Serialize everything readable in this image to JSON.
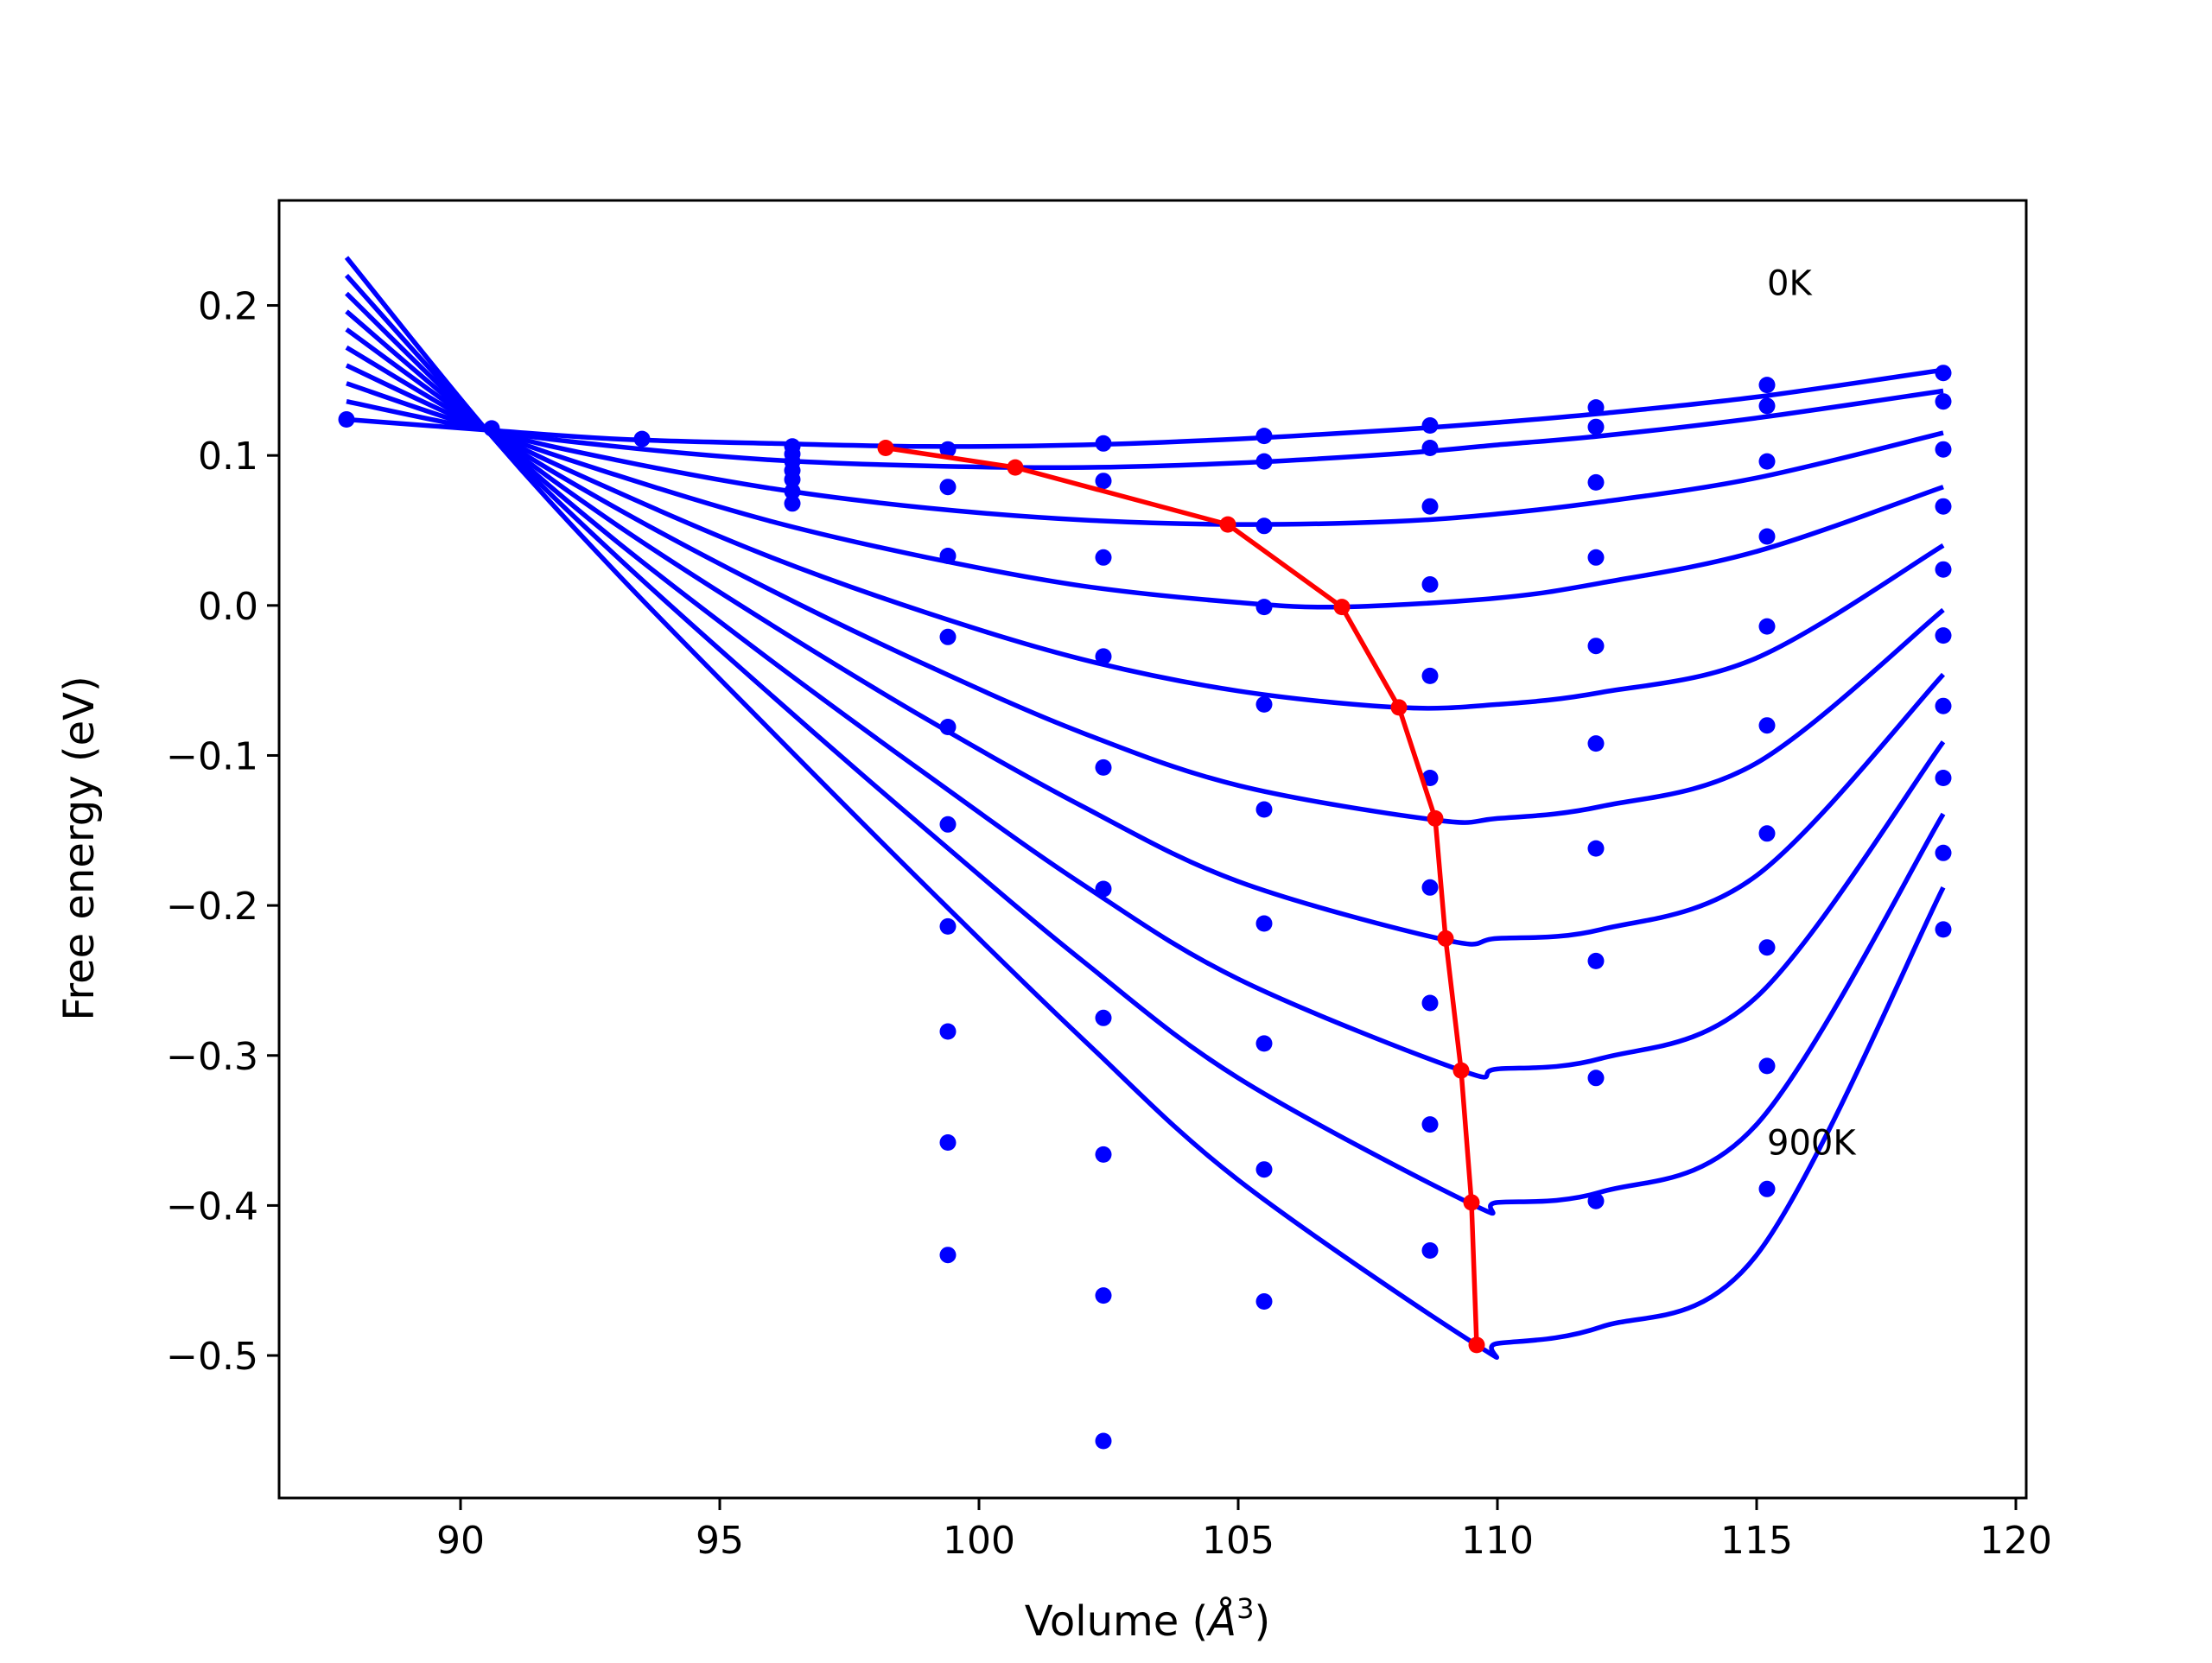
{
  "chart_data": {
    "type": "line",
    "title": "",
    "xlabel": "Volume (",
    "xlabel_symbol": "Å",
    "xlabel_sup": "3",
    "xlabel_close": ")",
    "ylabel": "Free energy (eV)",
    "xlim": [
      86.5,
      120.2
    ],
    "ylim": [
      -0.595,
      0.27
    ],
    "xticks": [
      90,
      95,
      100,
      105,
      110,
      115,
      120
    ],
    "xtick_labels": [
      "90",
      "95",
      "100",
      "105",
      "110",
      "115",
      "120"
    ],
    "yticks": [
      0.2,
      0.1,
      0.0,
      -0.1,
      -0.2,
      -0.3,
      -0.4,
      -0.5
    ],
    "ytick_labels": [
      "0.2",
      "0.1",
      "0.0",
      "−0.1",
      "−0.2",
      "−0.3",
      "−0.4",
      "−0.5"
    ],
    "grid": false,
    "colors": {
      "fits": "#0000ff",
      "points": "#0000ff",
      "minima": "#ff0000",
      "axes": "#000000"
    },
    "annotations": [
      {
        "text": "0K",
        "x": 115.2,
        "y": 0.207
      },
      {
        "text": "900K",
        "x": 115.2,
        "y": -0.366
      }
    ],
    "fit_curves": [
      {
        "x": [
          87.8,
          90.5,
          93.0,
          96.0,
          99.0,
          102.0,
          105.0,
          108.0,
          110.0,
          112.0,
          115.0,
          118.6
        ],
        "y": [
          0.124,
          0.117,
          0.111,
          0.108,
          0.106,
          0.107,
          0.111,
          0.117,
          0.122,
          0.128,
          0.139,
          0.157
        ]
      },
      {
        "x": [
          87.8,
          90.5,
          93.0,
          96.0,
          99.0,
          102.0,
          105.0,
          108.0,
          110.0,
          112.0,
          115.0,
          118.6
        ],
        "y": [
          0.136,
          0.117,
          0.106,
          0.097,
          0.093,
          0.092,
          0.095,
          0.101,
          0.107,
          0.113,
          0.125,
          0.143
        ]
      },
      {
        "x": [
          87.8,
          90.5,
          93.0,
          96.0,
          99.0,
          102.0,
          105.0,
          108.0,
          110.0,
          112.0,
          115.0,
          118.6
        ],
        "y": [
          0.148,
          0.117,
          0.097,
          0.078,
          0.065,
          0.057,
          0.054,
          0.056,
          0.061,
          0.069,
          0.085,
          0.115
        ]
      },
      {
        "x": [
          87.8,
          90.5,
          93.0,
          96.0,
          99.0,
          102.0,
          105.0,
          107.0,
          110.0,
          112.0,
          115.0,
          118.6
        ],
        "y": [
          0.16,
          0.117,
          0.087,
          0.056,
          0.032,
          0.013,
          0.002,
          -0.001,
          0.005,
          0.015,
          0.036,
          0.079
        ]
      },
      {
        "x": [
          87.8,
          90.5,
          93.0,
          96.0,
          99.0,
          102.0,
          105.0,
          108.1,
          110.0,
          112.0,
          115.0,
          118.6
        ],
        "y": [
          0.172,
          0.117,
          0.076,
          0.032,
          -0.005,
          -0.036,
          -0.057,
          -0.068,
          -0.066,
          -0.058,
          -0.035,
          0.04
        ]
      },
      {
        "x": [
          87.8,
          90.5,
          93.0,
          96.0,
          99.0,
          102.0,
          105.0,
          108.8,
          110.0,
          112.0,
          115.0,
          118.6
        ],
        "y": [
          0.184,
          0.117,
          0.065,
          0.01,
          -0.04,
          -0.085,
          -0.12,
          -0.143,
          -0.142,
          -0.134,
          -0.105,
          -0.003
        ]
      },
      {
        "x": [
          87.8,
          90.5,
          93.0,
          96.0,
          99.0,
          102.0,
          105.0,
          109.0,
          110.0,
          112.0,
          115.0,
          118.6
        ],
        "y": [
          0.196,
          0.117,
          0.054,
          -0.013,
          -0.076,
          -0.134,
          -0.184,
          -0.223,
          -0.222,
          -0.216,
          -0.18,
          -0.046
        ]
      },
      {
        "x": [
          87.8,
          90.5,
          93.0,
          96.0,
          99.0,
          102.0,
          105.0,
          109.3,
          110.0,
          112.0,
          115.0,
          118.6
        ],
        "y": [
          0.208,
          0.117,
          0.043,
          -0.037,
          -0.113,
          -0.186,
          -0.249,
          -0.31,
          -0.309,
          -0.302,
          -0.261,
          -0.091
        ]
      },
      {
        "x": [
          87.8,
          90.5,
          93.0,
          96.0,
          99.0,
          102.0,
          105.0,
          109.5,
          110.0,
          112.0,
          115.0,
          118.6
        ],
        "y": [
          0.22,
          0.117,
          0.033,
          -0.06,
          -0.15,
          -0.237,
          -0.315,
          -0.399,
          -0.398,
          -0.391,
          -0.346,
          -0.139
        ]
      },
      {
        "x": [
          87.8,
          90.5,
          93.0,
          96.0,
          99.0,
          102.0,
          105.0,
          109.6,
          110.0,
          112.0,
          115.0,
          118.6
        ],
        "y": [
          0.232,
          0.117,
          0.022,
          -0.084,
          -0.188,
          -0.289,
          -0.383,
          -0.493,
          -0.492,
          -0.481,
          -0.433,
          -0.188
        ]
      }
    ],
    "data_points": {
      "x": [
        87.8,
        90.6,
        93.5,
        96.4,
        96.4,
        96.4,
        96.4,
        96.4,
        96.4,
        96.4,
        99.4,
        99.4,
        99.4,
        99.4,
        99.4,
        99.4,
        99.4,
        99.4,
        99.4,
        99.4,
        102.4,
        102.4,
        102.4,
        102.4,
        102.4,
        102.4,
        102.4,
        102.4,
        102.4,
        102.4,
        105.5,
        105.5,
        105.5,
        105.5,
        105.5,
        105.5,
        105.5,
        105.5,
        105.5,
        105.5,
        108.7,
        108.7,
        108.7,
        108.7,
        108.7,
        108.7,
        108.7,
        108.7,
        108.7,
        108.7,
        111.9,
        111.9,
        111.9,
        111.9,
        111.9,
        111.9,
        111.9,
        111.9,
        111.9,
        111.9,
        115.2,
        115.2,
        115.2,
        115.2,
        115.2,
        115.2,
        115.2,
        115.2,
        115.2,
        115.2,
        118.6,
        118.6,
        118.6,
        118.6,
        118.6,
        118.6,
        118.6,
        118.6,
        118.6,
        118.6
      ],
      "y": [
        0.124,
        0.118,
        0.111,
        0.106,
        0.101,
        0.096,
        0.09,
        0.084,
        0.076,
        0.068,
        0.104,
        0.079,
        0.033,
        -0.021,
        -0.081,
        -0.146,
        -0.214,
        -0.284,
        -0.358,
        -0.433,
        0.108,
        0.083,
        0.032,
        -0.034,
        -0.108,
        -0.189,
        -0.275,
        -0.366,
        -0.46,
        -0.557,
        0.113,
        0.096,
        0.053,
        -0.001,
        -0.066,
        -0.136,
        -0.212,
        -0.292,
        -0.376,
        -0.464,
        0.12,
        0.105,
        0.066,
        0.014,
        -0.047,
        -0.115,
        -0.188,
        -0.265,
        -0.346,
        -0.43,
        0.132,
        0.119,
        0.082,
        0.032,
        -0.027,
        -0.092,
        -0.162,
        -0.237,
        -0.315,
        -0.397,
        0.147,
        0.133,
        0.096,
        0.046,
        -0.014,
        -0.08,
        -0.152,
        -0.228,
        -0.307,
        -0.389,
        0.155,
        0.136,
        0.104,
        0.066,
        0.024,
        -0.02,
        -0.067,
        -0.115,
        -0.165,
        -0.216
      ]
    },
    "minima_line": {
      "x": [
        98.2,
        100.7,
        104.8,
        107.0,
        108.1,
        108.8,
        109.0,
        109.3,
        109.5,
        109.6
      ],
      "y": [
        0.105,
        0.092,
        0.054,
        -0.001,
        -0.068,
        -0.142,
        -0.222,
        -0.31,
        -0.398,
        -0.493
      ]
    }
  }
}
